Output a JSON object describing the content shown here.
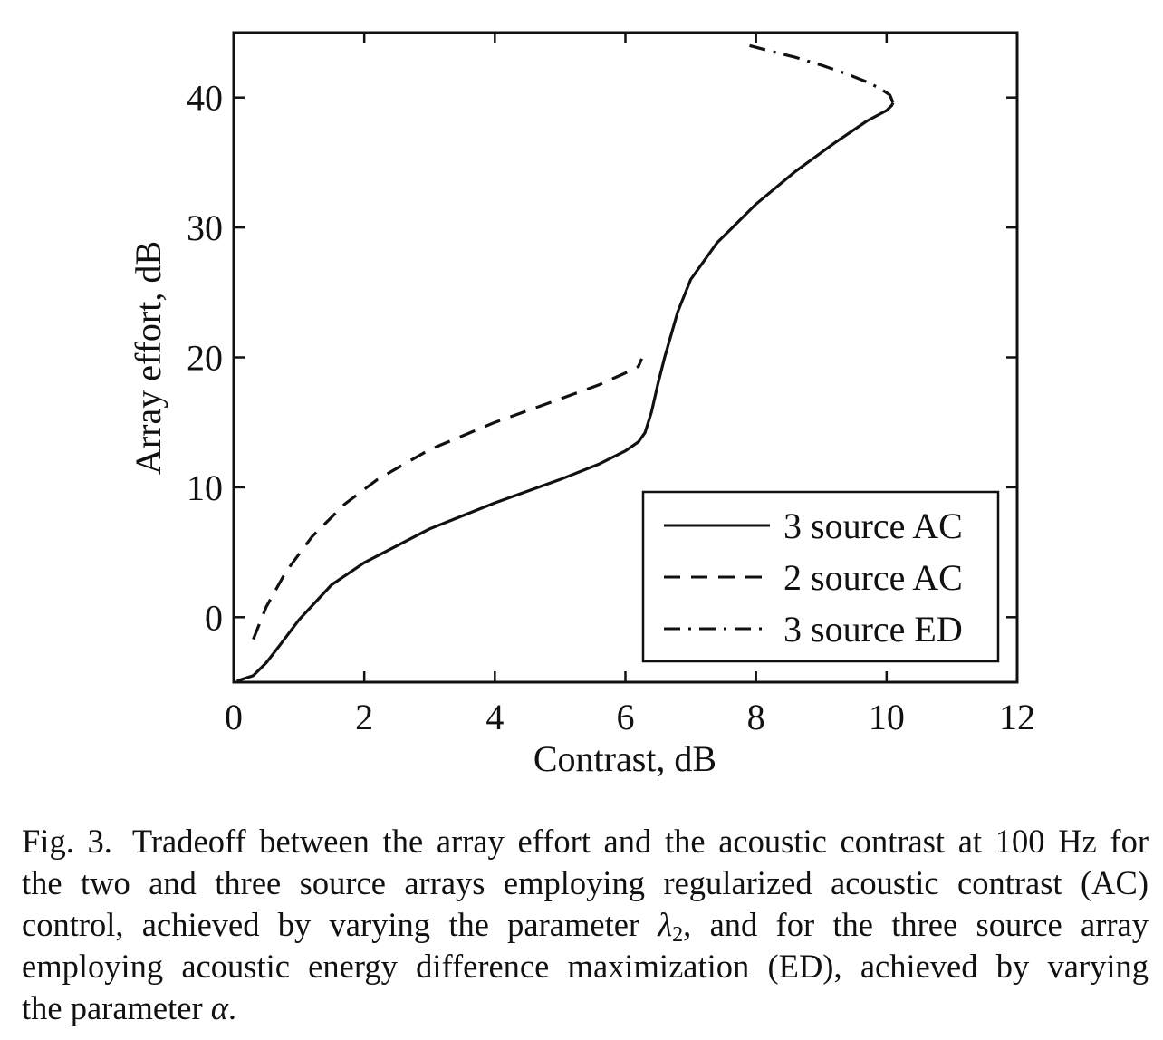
{
  "chart_data": {
    "type": "line",
    "title": "",
    "xlabel": "Contrast, dB",
    "ylabel": "Array effort, dB",
    "xlim": [
      0,
      12
    ],
    "ylim": [
      -5,
      45
    ],
    "xticks": [
      0,
      2,
      4,
      6,
      8,
      10,
      12
    ],
    "yticks": [
      0,
      10,
      20,
      30,
      40
    ],
    "xtick_labels": [
      "0",
      "2",
      "4",
      "6",
      "8",
      "10",
      "12"
    ],
    "ytick_labels": [
      "0",
      "10",
      "20",
      "30",
      "40"
    ],
    "grid": false,
    "legend_position": "bottom-right",
    "series": [
      {
        "name": "3 source AC",
        "style": "solid",
        "x": [
          0.05,
          0.3,
          0.5,
          0.7,
          1.0,
          1.5,
          2.0,
          3.0,
          4.0,
          5.0,
          5.6,
          6.0,
          6.2,
          6.3,
          6.4,
          6.5,
          6.6,
          6.8,
          7.0,
          7.4,
          8.0,
          8.6,
          9.2,
          9.7,
          10.0,
          10.08,
          10.1
        ],
        "y": [
          -4.9,
          -4.5,
          -3.5,
          -2.2,
          -0.2,
          2.5,
          4.2,
          6.8,
          8.8,
          10.6,
          11.8,
          12.8,
          13.5,
          14.2,
          15.8,
          18.0,
          20.0,
          23.5,
          26.0,
          28.8,
          31.8,
          34.3,
          36.5,
          38.2,
          39.0,
          39.4,
          39.6
        ]
      },
      {
        "name": "2 source AC",
        "style": "dashed",
        "x": [
          0.3,
          0.5,
          0.8,
          1.2,
          1.7,
          2.2,
          3.0,
          4.0,
          5.0,
          5.6,
          6.0,
          6.2,
          6.25
        ],
        "y": [
          -1.7,
          0.8,
          3.5,
          6.2,
          8.7,
          10.6,
          12.9,
          15.0,
          16.8,
          17.9,
          18.8,
          19.3,
          19.9
        ]
      },
      {
        "name": "3 source ED",
        "style": "dashdot",
        "x": [
          7.9,
          8.2,
          8.6,
          9.0,
          9.4,
          9.7,
          9.9,
          10.05,
          10.1
        ],
        "y": [
          44.0,
          43.6,
          43.1,
          42.5,
          41.8,
          41.2,
          40.7,
          40.2,
          39.6
        ]
      }
    ]
  },
  "caption": {
    "figure_number": "Fig. 3.",
    "line1": "Tradeoff between the array effort and the acoustic contrast at 100 Hz for",
    "line2": "the two and three source arrays employing regularized acoustic contrast (AC)",
    "line3_before": "control, achieved by varying the parameter ",
    "lambda_symbol": "λ",
    "lambda_subscript": "2",
    "line3_after": ", and for the three source array",
    "line4": "employing acoustic energy difference maximization (ED), achieved by varying",
    "line5_before": "the parameter ",
    "alpha_symbol": "α",
    "line5_after": "."
  }
}
